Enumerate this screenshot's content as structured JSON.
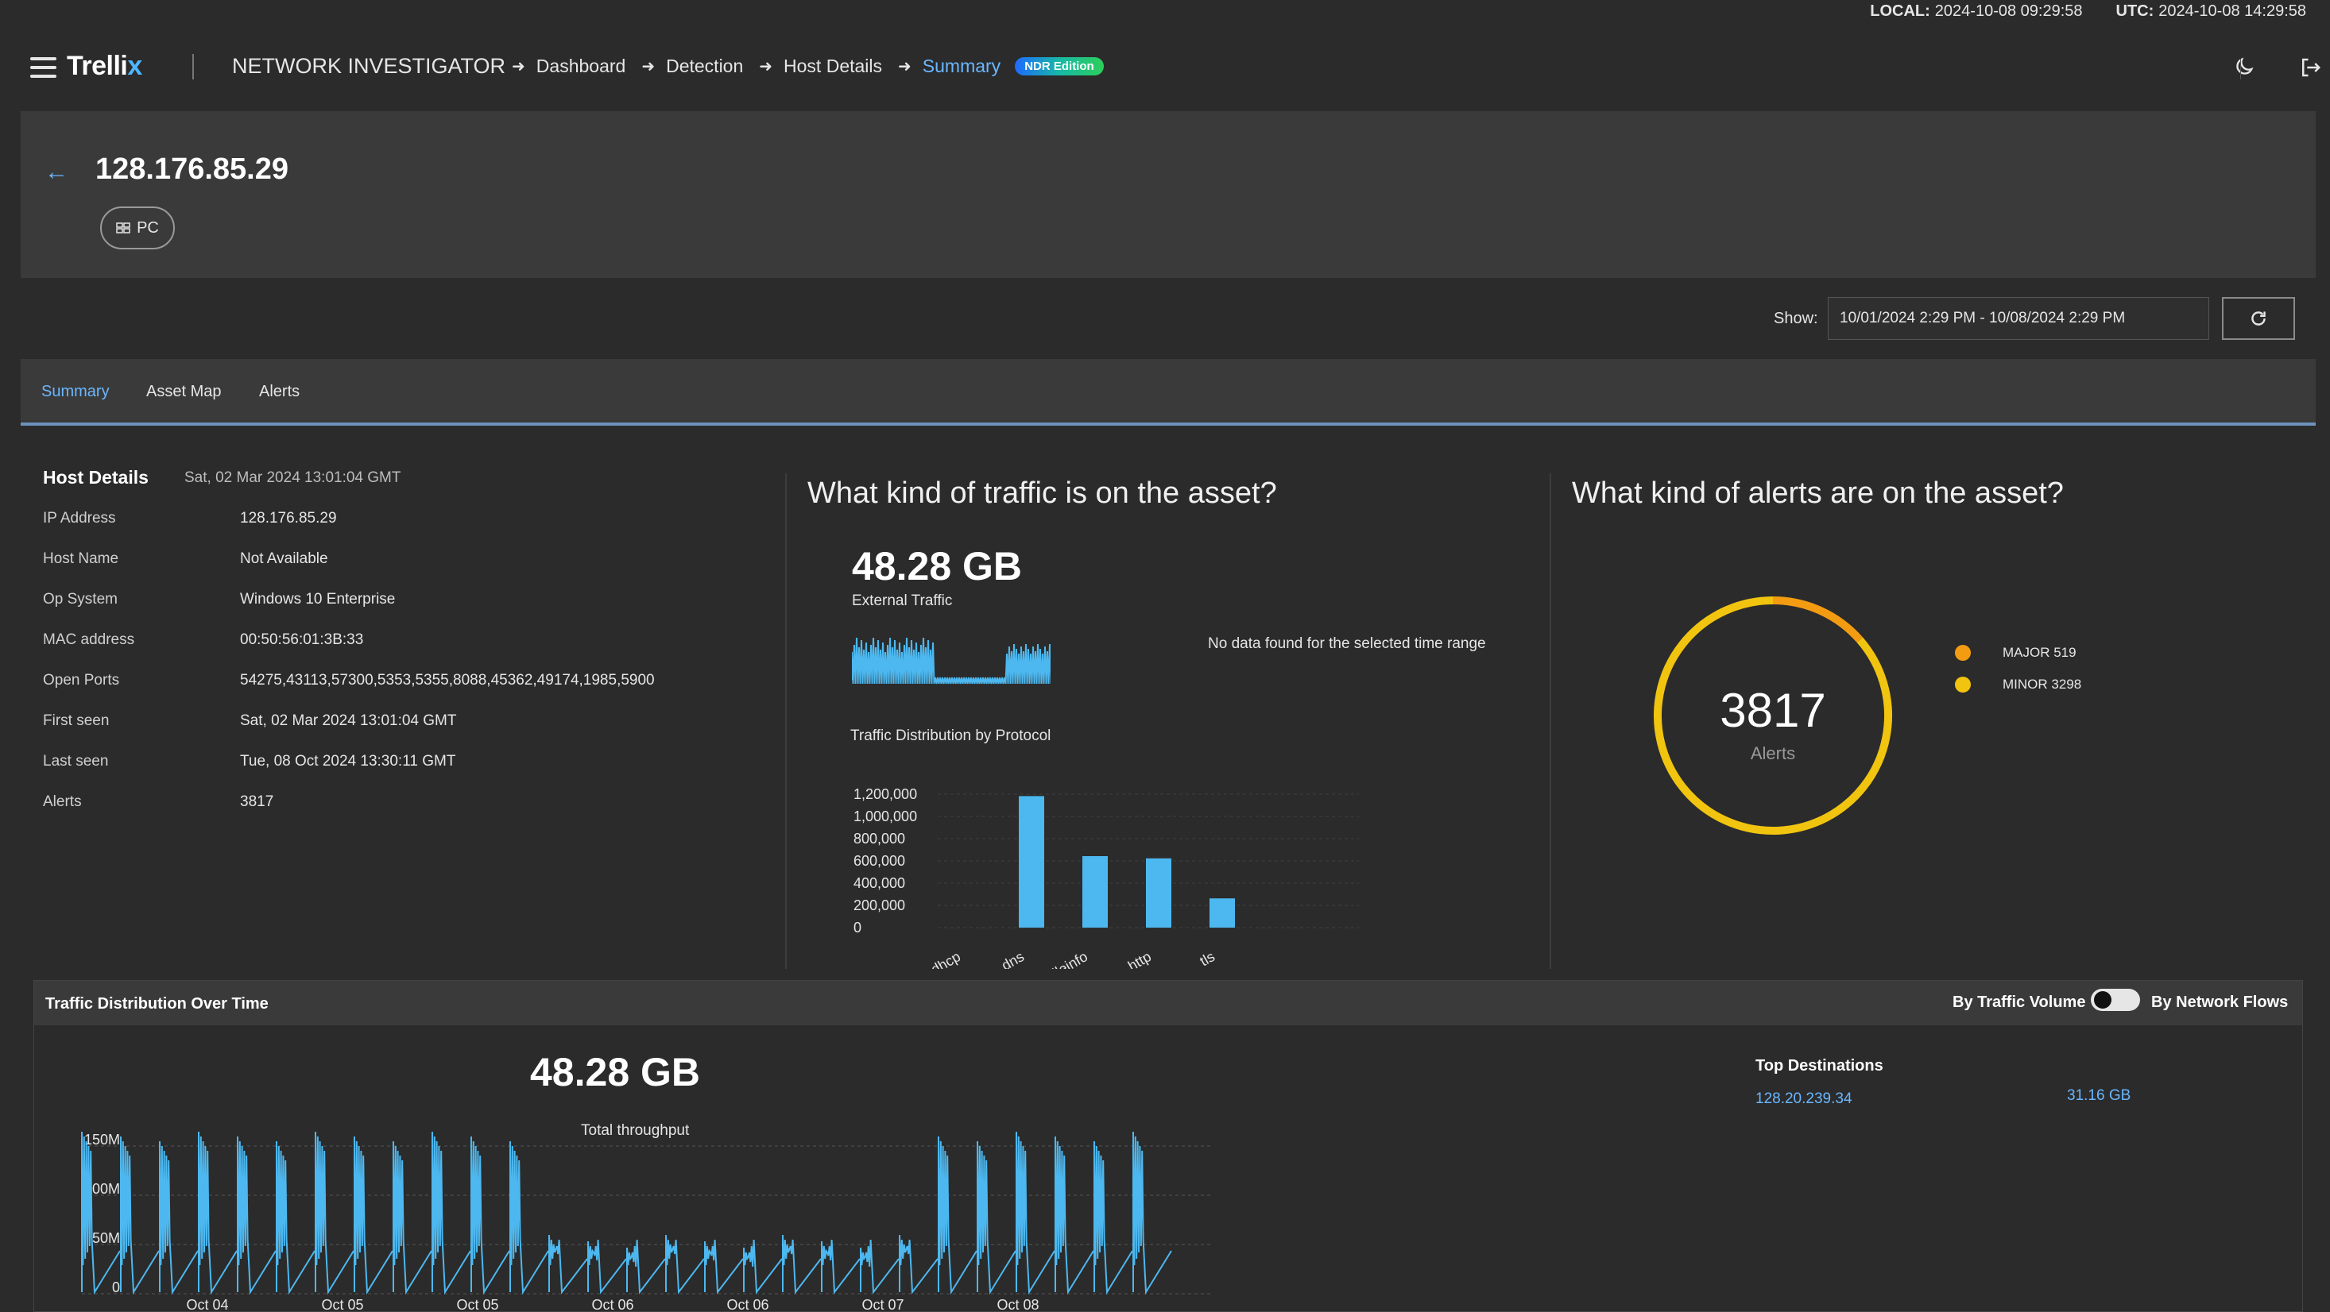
{
  "timebar": {
    "local_label": "LOCAL:",
    "local_value": "2024-10-08 09:29:58",
    "utc_label": "UTC:",
    "utc_value": "2024-10-08 14:29:58"
  },
  "header": {
    "logo_main": "Trelli",
    "logo_accent": "x",
    "app_name": "NETWORK INVESTIGATOR",
    "breadcrumb": [
      "Dashboard",
      "Detection",
      "Host Details"
    ],
    "current": "Summary",
    "edition_badge": "NDR Edition"
  },
  "host": {
    "ip": "128.176.85.29",
    "type_pill": "PC"
  },
  "show": {
    "label": "Show:",
    "range": "10/01/2024 2:29 PM - 10/08/2024 2:29 PM"
  },
  "tabs": [
    "Summary",
    "Asset Map",
    "Alerts"
  ],
  "host_details": {
    "title": "Host Details",
    "date": "Sat, 02 Mar 2024 13:01:04 GMT",
    "rows": [
      {
        "label": "IP Address",
        "value": "128.176.85.29"
      },
      {
        "label": "Host Name",
        "value": "Not Available"
      },
      {
        "label": "Op System",
        "value": "Windows 10 Enterprise"
      },
      {
        "label": "MAC address",
        "value": "00:50:56:01:3B:33"
      },
      {
        "label": "Open Ports",
        "value": "54275,43113,57300,5353,5355,8088,45362,49174,1985,5900"
      },
      {
        "label": "First seen",
        "value": "Sat, 02 Mar 2024 13:01:04 GMT"
      },
      {
        "label": "Last seen",
        "value": "Tue, 08 Oct 2024 13:30:11 GMT"
      },
      {
        "label": "Alerts",
        "value": "3817"
      }
    ]
  },
  "traffic": {
    "question": "What kind of traffic is on the asset?",
    "external_value": "48.28 GB",
    "external_label": "External Traffic",
    "no_data": "No data found for the selected time range",
    "protocol_title": "Traffic Distribution by Protocol"
  },
  "alerts": {
    "question": "What kind of alerts are on the asset?",
    "total": "3817",
    "total_label": "Alerts",
    "legend": [
      {
        "label": "MAJOR 519",
        "color": "#f39c12"
      },
      {
        "label": "MINOR 3298",
        "color": "#f1c40f"
      }
    ]
  },
  "chart_data": [
    {
      "type": "bar",
      "title": "Traffic Distribution by Protocol",
      "categories": [
        "dhcp",
        "dns",
        "fileinfo",
        "http",
        "tls"
      ],
      "values": [
        0,
        1240000,
        700000,
        680000,
        320000
      ],
      "ylim": [
        0,
        1200000
      ],
      "yticks": [
        "1,200,000",
        "1,000,000",
        "800,000",
        "600,000",
        "400,000",
        "200,000",
        "0"
      ],
      "color": "#4db8f0"
    },
    {
      "type": "line",
      "title": "Traffic Distribution Over Time",
      "xlabel": "",
      "ylabel": "",
      "yticks": [
        "150M",
        "100M",
        "50M",
        "0"
      ],
      "ylim": [
        0,
        150
      ],
      "xticks": [
        "Oct 04",
        "Oct 05",
        "Oct 05",
        "Oct 06",
        "Oct 06",
        "Oct 07",
        "Oct 08"
      ],
      "color": "#4db8f0"
    },
    {
      "type": "pie",
      "title": "Alerts",
      "categories": [
        "MAJOR",
        "MINOR"
      ],
      "values": [
        519,
        3298
      ],
      "colors": [
        "#f39c12",
        "#f1c40f"
      ]
    }
  ],
  "tdot": {
    "title": "Traffic Distribution Over Time",
    "toggle_left": "By Traffic Volume",
    "toggle_right": "By Network Flows",
    "total_value": "48.28 GB",
    "total_label": "Total throughput",
    "top_dest_title": "Top Destinations",
    "top_dest": [
      {
        "ip": "128.20.239.34",
        "size": "31.16 GB"
      }
    ]
  }
}
